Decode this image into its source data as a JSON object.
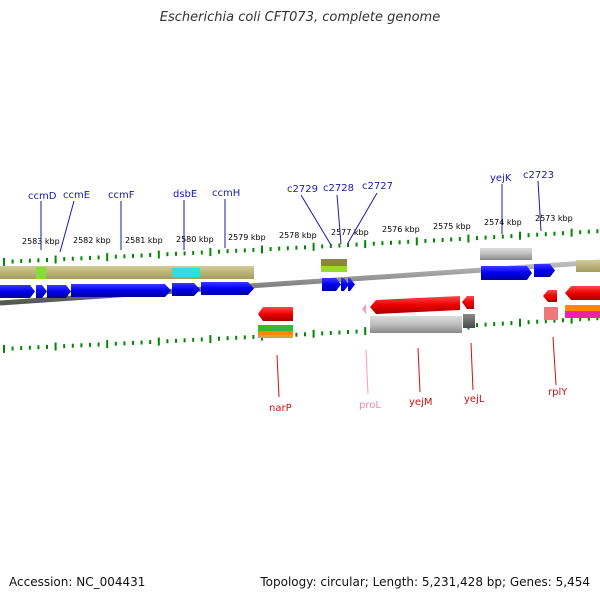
{
  "title": "Escherichia coli CFT073, complete genome",
  "accession": "Accession: NC_004431",
  "topology": "Topology: circular; Length: 5,231,428 bp; Genes: 5,454",
  "colors": {
    "forward_gene": "#0000ee",
    "reverse_gene": "#ee0000",
    "pseudo_gene": "#aaaaaa",
    "tick": "#008800",
    "backbone": "#777777",
    "cds_band": "#b8b075"
  },
  "kbp_labels": [
    "2583 kbp",
    "2582 kbp",
    "2581 kbp",
    "2580 kbp",
    "2579 kbp",
    "2578 kbp",
    "2577 kbp",
    "2576 kbp",
    "2575 kbp",
    "2574 kbp",
    "2573 kbp"
  ],
  "top_genes": [
    "ccmD",
    "ccmE",
    "ccmF",
    "dsbE",
    "ccmH",
    "c2729",
    "c2728",
    "c2727",
    "yejK",
    "c2723"
  ],
  "bottom_genes": [
    "narP",
    "proL",
    "yejM",
    "yejL",
    "rplY"
  ]
}
